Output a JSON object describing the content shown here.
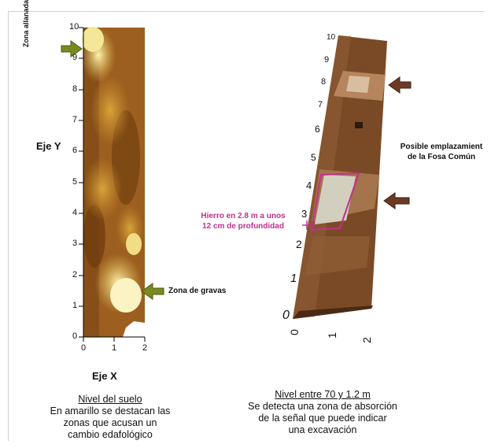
{
  "left_panel": {
    "y_axis_title": "Eje Y",
    "x_axis_title": "Eje X",
    "y_ticks": [
      "0",
      "1",
      "2",
      "3",
      "4",
      "5",
      "6",
      "7",
      "8",
      "9",
      "10"
    ],
    "x_ticks": [
      "0",
      "1",
      "2"
    ],
    "annotation_top": "Zona allanada",
    "annotation_gravel": "Zona de gravas",
    "caption_title": "Nivel del suelo",
    "caption_body": [
      "En amarillo se destacan las",
      "zonas que acusan un",
      "cambio edafológico"
    ]
  },
  "right_panel": {
    "y_ticks": [
      "0",
      "1",
      "2",
      "3",
      "4",
      "5",
      "6",
      "7",
      "8",
      "9",
      "10"
    ],
    "x_ticks": [
      "0",
      "1",
      "2"
    ],
    "annotation_iron": [
      "Hierro en 2.8 m a unos",
      "12 cm de profundidad"
    ],
    "annotation_grave": [
      "Posible emplazamient",
      "de la Fosa Común"
    ],
    "caption_title": "Nivel entre 70 y 1.2 m",
    "caption_body": [
      "Se detecta una zona de absorción",
      "de la señal que puede indicar",
      "una  excavación"
    ]
  },
  "colors": {
    "arrow_green": "#7a8a1e",
    "arrow_brown": "#6b3b25",
    "iron_magenta": "#c2308f"
  }
}
